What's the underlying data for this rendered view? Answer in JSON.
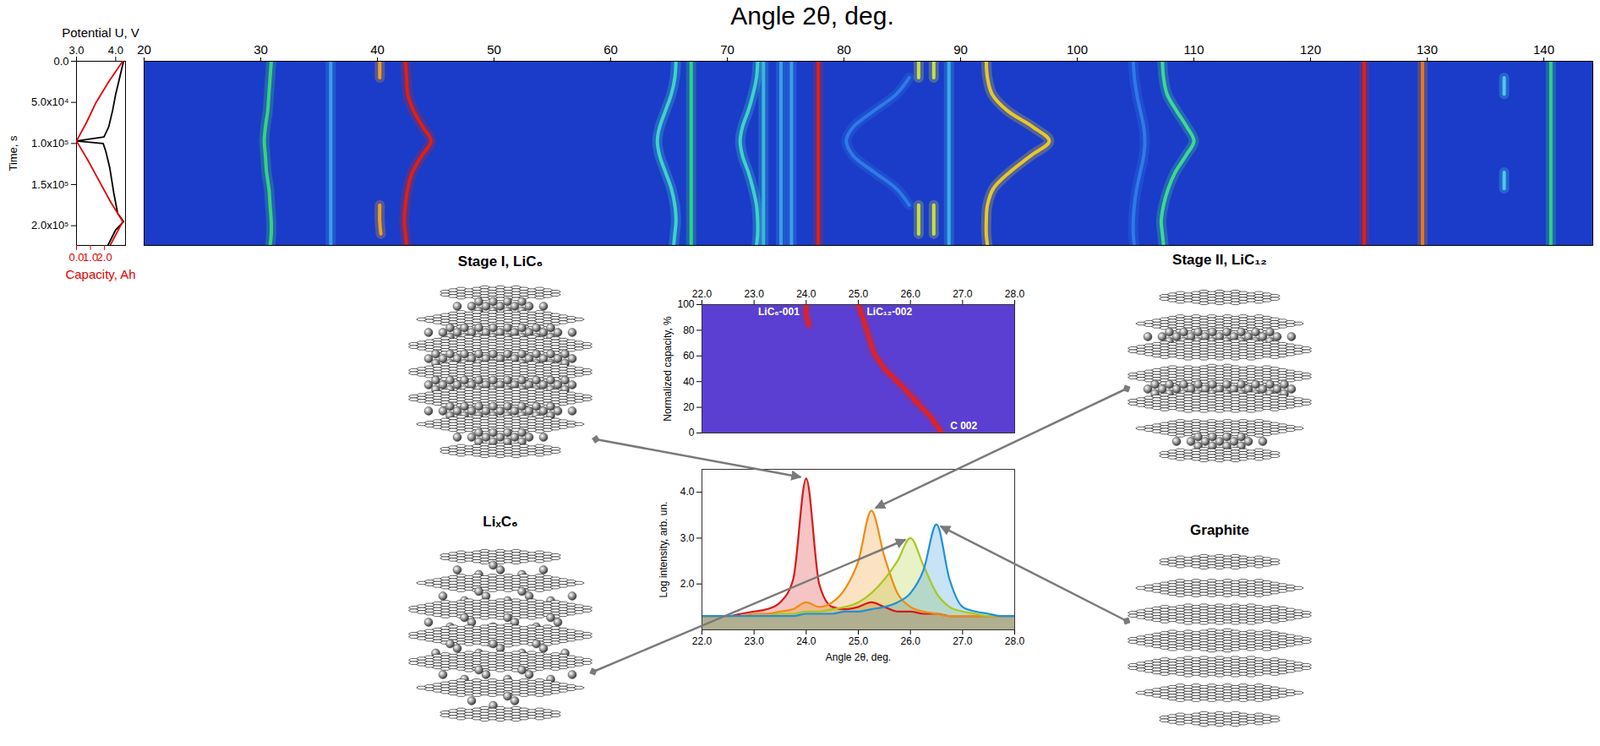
{
  "chart_data": [
    {
      "type": "heatmap",
      "title": "Angle 2θ, deg.",
      "xlim": [
        20,
        144.2
      ],
      "xticks": [
        20,
        30,
        40,
        50,
        60,
        70,
        80,
        90,
        100,
        110,
        120,
        130,
        140
      ],
      "ylim": [
        0,
        224000
      ],
      "y": [
        0,
        20000,
        40000,
        60000,
        80000,
        97000,
        115000,
        135000,
        155000,
        175000,
        195000,
        210000,
        224000
      ],
      "series": [
        {
          "color": "#3ad27a",
          "values": [
            30.9,
            30.8,
            30.7,
            30.6,
            30.4,
            30.3,
            30.4,
            30.5,
            30.7,
            30.8,
            30.9,
            30.9,
            30.8
          ]
        },
        {
          "color": "#3b9ee6",
          "values": [
            36,
            36,
            36,
            36,
            36,
            36,
            36,
            36,
            36,
            36,
            36,
            36,
            36
          ]
        },
        {
          "color": "#f0a020",
          "values": [
            40.2,
            40.2,
            null,
            null,
            null,
            null,
            null,
            null,
            null,
            40.2,
            40.2,
            40.3,
            null
          ]
        },
        {
          "color": "#e0200e",
          "values": [
            42.4,
            42.5,
            42.6,
            43.1,
            43.9,
            44.6,
            43.8,
            43.0,
            42.6,
            42.4,
            42.3,
            42.4,
            42.5
          ]
        },
        {
          "color": "#40d2c8",
          "values": [
            65.6,
            65.5,
            65.2,
            64.7,
            64.2,
            64.0,
            64.2,
            64.7,
            65.2,
            65.5,
            65.6,
            65.5,
            65.4
          ]
        },
        {
          "color": "#34d080",
          "values": [
            66.9,
            66.9,
            66.9,
            66.9,
            66.9,
            66.9,
            66.9,
            66.9,
            66.9,
            66.9,
            66.9,
            66.9,
            66.9
          ]
        },
        {
          "color": "#40d2c8",
          "values": [
            72.6,
            72.5,
            72.2,
            71.8,
            71.3,
            71.1,
            71.3,
            71.8,
            72.2,
            72.5,
            72.6,
            72.6,
            72.5
          ]
        },
        {
          "color": "#3ab8d8",
          "values": [
            73.1,
            73.1,
            73.1,
            73.1,
            73.1,
            73.1,
            73.1,
            73.1,
            73.1,
            73.1,
            73.1,
            73.1,
            73.1
          ]
        },
        {
          "color": "#3b9ee6",
          "values": [
            74.6,
            74.6,
            74.6,
            74.6,
            74.6,
            74.6,
            74.6,
            74.6,
            74.6,
            74.6,
            74.6,
            74.6,
            74.6
          ]
        },
        {
          "color": "#3b9ee6",
          "values": [
            75.5,
            75.5,
            75.5,
            75.5,
            75.5,
            75.5,
            75.5,
            75.5,
            75.5,
            75.5,
            75.5,
            75.5,
            75.5
          ]
        },
        {
          "color": "#e0200e",
          "values": [
            77.8,
            77.8,
            77.8,
            77.8,
            77.8,
            77.8,
            77.8,
            77.8,
            77.8,
            77.8,
            77.8,
            77.8,
            77.8
          ]
        },
        {
          "color": "#c8e040",
          "values": [
            86.4,
            86.4,
            null,
            null,
            null,
            null,
            null,
            null,
            null,
            86.4,
            86.4,
            86.4,
            null
          ]
        },
        {
          "color": "#c8e040",
          "values": [
            87.7,
            87.7,
            null,
            null,
            null,
            null,
            null,
            null,
            null,
            87.7,
            87.7,
            87.7,
            null
          ]
        },
        {
          "color": "#2f7ae6",
          "values": [
            null,
            85.6,
            84.5,
            82.6,
            80.8,
            80.2,
            80.8,
            82.6,
            84.5,
            85.6,
            null,
            null,
            null
          ]
        },
        {
          "color": "#3ab0e0",
          "values": [
            89.0,
            89.0,
            89.0,
            89.0,
            89.0,
            89.0,
            89.0,
            89.0,
            89.0,
            89.0,
            89.0,
            89.0,
            89.0
          ]
        },
        {
          "color": "#e8c828",
          "values": [
            92.2,
            92.3,
            92.7,
            94.0,
            96.2,
            97.6,
            96.0,
            94.2,
            92.8,
            92.3,
            92.2,
            92.2,
            92.3
          ]
        },
        {
          "color": "#2f7ae6",
          "values": [
            104.8,
            104.9,
            105.1,
            105.4,
            105.7,
            105.8,
            105.7,
            105.4,
            105.1,
            104.9,
            104.8,
            104.8,
            104.9
          ]
        },
        {
          "color": "#40d890",
          "values": [
            107.3,
            107.4,
            107.7,
            108.5,
            109.4,
            110.0,
            109.3,
            108.4,
            107.8,
            107.4,
            107.2,
            107.3,
            107.4
          ]
        },
        {
          "color": "#e0200e",
          "values": [
            124.6,
            124.6,
            124.6,
            124.6,
            124.6,
            124.6,
            124.6,
            124.6,
            124.6,
            124.6,
            124.6,
            124.6,
            124.6
          ]
        },
        {
          "color": "#e87818",
          "values": [
            129.6,
            129.6,
            129.6,
            129.6,
            129.6,
            129.6,
            129.6,
            129.6,
            129.6,
            129.6,
            129.6,
            129.6,
            129.6
          ]
        },
        {
          "color": "#50c8e8",
          "values": [
            null,
            136.6,
            136.6,
            null,
            null,
            null,
            null,
            136.6,
            136.6,
            null,
            null,
            null,
            null
          ]
        },
        {
          "color": "#34d080",
          "values": [
            140.6,
            140.6,
            140.6,
            140.6,
            140.6,
            140.6,
            140.6,
            140.6,
            140.6,
            140.6,
            140.6,
            140.6,
            140.6
          ]
        }
      ]
    },
    {
      "type": "line",
      "ylabel": "Time, s",
      "ylim": [
        0,
        224000
      ],
      "yticks": [
        {
          "value": 0,
          "label": "0.0"
        },
        {
          "value": 50000,
          "label": "5.0x10⁴"
        },
        {
          "value": 100000,
          "label": "1.0x10⁵"
        },
        {
          "value": 150000,
          "label": "1.5x10⁵"
        },
        {
          "value": 200000,
          "label": "2.0x10⁵"
        }
      ],
      "xlabel": "Potential U, V",
      "xlim": [
        3,
        4.25
      ],
      "xticks": [
        3,
        4
      ],
      "x2label": "Capacity, Ah",
      "x2lim": [
        0,
        3.5
      ],
      "x2ticks": [
        0,
        1,
        2
      ],
      "series": [
        {
          "color": "#000000",
          "y": [
            0,
            20000,
            40000,
            60000,
            80000,
            92000,
            97000,
            100000,
            110000,
            130000,
            160000,
            185000,
            195000,
            205000,
            224000
          ],
          "values": [
            4.2,
            4.1,
            4.0,
            3.92,
            3.82,
            3.7,
            3.0,
            3.68,
            3.75,
            3.85,
            3.95,
            4.05,
            4.2,
            4.0,
            3.8
          ]
        },
        {
          "color": "#e00000",
          "axis": "x2",
          "y": [
            0,
            25000,
            50000,
            75000,
            97000,
            120000,
            145000,
            170000,
            195000,
            224000
          ],
          "values": [
            3.3,
            2.3,
            1.4,
            0.7,
            0,
            0.8,
            1.6,
            2.4,
            3.3,
            2.4
          ]
        }
      ]
    },
    {
      "type": "line",
      "xlim": [
        22,
        28
      ],
      "xticks": [
        22,
        23,
        24,
        25,
        26,
        27,
        28
      ],
      "ylabel": "Normalized capacity, %",
      "ylim": [
        0,
        100
      ],
      "yticks": [
        0,
        20,
        40,
        60,
        80,
        100
      ],
      "series": [
        {
          "name": "LiC₆-001",
          "color": "#e8201a",
          "x": [
            24.0,
            24.0,
            24.05
          ],
          "values": [
            100,
            92,
            84
          ]
        },
        {
          "name": "LiC₁₂-002",
          "color": "#e8201a",
          "x": [
            25.0,
            25.1,
            25.2,
            25.3,
            25.5,
            25.8,
            26.1
          ],
          "values": [
            100,
            88,
            75,
            62,
            50,
            38,
            25
          ]
        },
        {
          "name": "C 002",
          "color": "#e8201a",
          "x": [
            26.1,
            26.4,
            26.6
          ],
          "values": [
            25,
            12,
            0
          ]
        }
      ]
    },
    {
      "type": "line",
      "xlabel": "Angle 2θ, deg.",
      "ylabel": "Log intensity, arb. un.",
      "xlim": [
        22,
        28
      ],
      "xticks": [
        22,
        23,
        24,
        25,
        26,
        27,
        28
      ],
      "ylim": [
        1,
        4.5
      ],
      "yticks": [
        2,
        3,
        4
      ],
      "x": [
        22,
        22.25,
        22.5,
        22.75,
        23,
        23.25,
        23.5,
        23.75,
        24,
        24.25,
        24.5,
        24.75,
        25,
        25.25,
        25.5,
        25.75,
        26,
        26.25,
        26.5,
        26.75,
        27,
        27.25,
        27.5,
        27.75,
        28
      ],
      "series": [
        {
          "name": "Stage I, LiC₆",
          "color": "#d81818",
          "values": [
            1.3,
            1.3,
            1.3,
            1.35,
            1.4,
            1.45,
            1.6,
            2.1,
            4.3,
            2.0,
            1.5,
            1.45,
            1.5,
            1.6,
            1.5,
            1.4,
            1.4,
            1.35,
            1.35,
            1.3,
            1.3,
            1.3,
            1.3,
            1.3,
            1.3
          ]
        },
        {
          "name": "Stage II, LiC₁₂",
          "color": "#f08c10",
          "values": [
            1.3,
            1.3,
            1.3,
            1.3,
            1.35,
            1.35,
            1.4,
            1.45,
            1.6,
            1.5,
            1.6,
            1.9,
            2.5,
            3.6,
            2.6,
            1.8,
            1.5,
            1.4,
            1.35,
            1.3,
            1.3,
            1.3,
            1.3,
            1.3,
            1.3
          ]
        },
        {
          "name": "LiₓC₆",
          "color": "#a8c820",
          "values": [
            1.3,
            1.3,
            1.3,
            1.3,
            1.3,
            1.3,
            1.35,
            1.35,
            1.4,
            1.4,
            1.45,
            1.5,
            1.6,
            1.8,
            2.1,
            2.5,
            3.0,
            2.4,
            1.8,
            1.5,
            1.4,
            1.35,
            1.3,
            1.3,
            1.3
          ]
        },
        {
          "name": "Graphite",
          "color": "#2090d8",
          "values": [
            1.3,
            1.3,
            1.3,
            1.3,
            1.3,
            1.3,
            1.3,
            1.3,
            1.35,
            1.35,
            1.35,
            1.4,
            1.4,
            1.45,
            1.5,
            1.6,
            1.8,
            2.3,
            3.3,
            2.1,
            1.5,
            1.4,
            1.35,
            1.3,
            1.3
          ]
        }
      ]
    }
  ]
}
